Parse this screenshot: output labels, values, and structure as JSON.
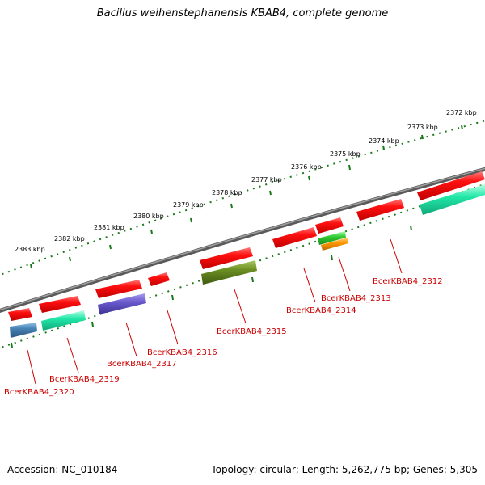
{
  "header": {
    "title": "Bacillus weihenstephanensis KBAB4, complete genome"
  },
  "footer": {
    "accession": "Accession: NC_010184",
    "topology": "Topology: circular; Length: 5,262,775 bp; Genes: 5,305"
  },
  "map": {
    "kbp_labels": [
      "2372 kbp",
      "2373 kbp",
      "2374 kbp",
      "2375 kbp",
      "2376 kbp",
      "2377 kbp",
      "2378 kbp",
      "2379 kbp",
      "2380 kbp",
      "2381 kbp",
      "2382 kbp",
      "2383 kbp"
    ],
    "gene_labels": [
      "BcerKBAB4_2312",
      "BcerKBAB4_2313",
      "BcerKBAB4_2314",
      "BcerKBAB4_2315",
      "BcerKBAB4_2316",
      "BcerKBAB4_2317",
      "BcerKBAB4_2319",
      "BcerKBAB4_2320"
    ],
    "colors": {
      "gene_red": "#ee1111",
      "cds_cyan": "#22e8a8",
      "backbone": "#707070",
      "tick_green": "#1a7a1a",
      "label_red": "#cc0000",
      "olive": "#6b8e23",
      "purple": "#6a5acd",
      "steel_blue": "#4682b4",
      "green": "#33cc33",
      "orange": "#ff9900"
    }
  }
}
